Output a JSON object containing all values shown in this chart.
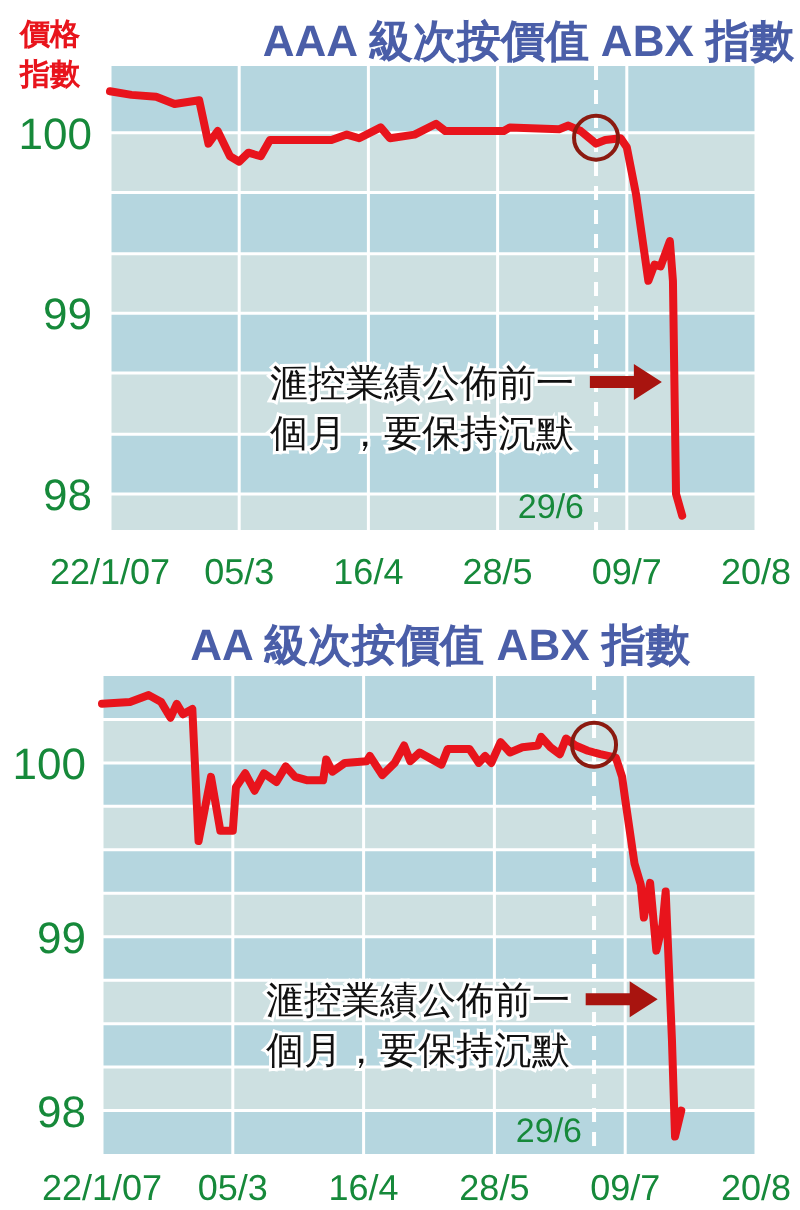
{
  "chart_data": [
    {
      "type": "line",
      "title": "AAA 級次按價值 ABX 指數",
      "ylabel": "價格指數",
      "x": [
        "2007-01-22",
        "2007-01-29",
        "2007-02-06",
        "2007-02-12",
        "2007-02-20",
        "2007-02-23",
        "2007-02-26",
        "2007-03-02",
        "2007-03-05",
        "2007-03-08",
        "2007-03-12",
        "2007-03-15",
        "2007-03-23",
        "2007-04-04",
        "2007-04-09",
        "2007-04-13",
        "2007-04-20",
        "2007-04-23",
        "2007-05-01",
        "2007-05-08",
        "2007-05-11",
        "2007-05-30",
        "2007-06-01",
        "2007-06-17",
        "2007-06-20",
        "2007-06-24",
        "2007-06-29",
        "2007-07-02",
        "2007-07-07",
        "2007-07-09",
        "2007-07-12",
        "2007-07-16",
        "2007-07-18",
        "2007-07-20",
        "2007-07-23",
        "2007-07-24",
        "2007-07-25",
        "2007-07-27"
      ],
      "series": [
        {
          "color": "#e8141c",
          "values": [
            100.23,
            100.21,
            100.2,
            100.16,
            100.18,
            99.94,
            100.01,
            99.87,
            99.84,
            99.89,
            99.87,
            99.96,
            99.96,
            99.96,
            99.99,
            99.97,
            100.03,
            99.97,
            99.99,
            100.05,
            100.01,
            100.01,
            100.03,
            100.02,
            100.04,
            100.01,
            99.94,
            99.96,
            99.97,
            99.92,
            99.66,
            99.18,
            99.27,
            99.26,
            99.4,
            99.18,
            98.0,
            97.88
          ]
        }
      ],
      "xlim": [
        "2007-01-22",
        "2007-08-20"
      ],
      "xticks": [
        {
          "value": "2007-01-22",
          "label": "22/1/07"
        },
        {
          "value": "2007-03-05",
          "label": "05/3"
        },
        {
          "value": "2007-04-16",
          "label": "16/4"
        },
        {
          "value": "2007-05-28",
          "label": "28/5"
        },
        {
          "value": "2007-07-09",
          "label": "09/7"
        },
        {
          "value": "2007-08-20",
          "label": "20/8"
        }
      ],
      "ylim": [
        97.8,
        100.37
      ],
      "yticks": [
        98,
        {
          "value": 98.33,
          "label": null
        },
        {
          "value": 98.67,
          "label": null
        },
        99,
        {
          "value": 99.33,
          "label": null
        },
        {
          "value": 99.67,
          "label": null
        },
        100
      ],
      "grid": true,
      "ref_lines": [
        {
          "axis": "x",
          "value": "2007-06-29",
          "label": "29/6",
          "color": "#ffffff",
          "line_style": "dashed"
        }
      ],
      "annotations": [
        {
          "text": "滙控業績公佈前一個月，要保持沉默",
          "x": "2007-07-23",
          "y": 98.62
        }
      ]
    },
    {
      "type": "line",
      "title": "AA 級次按價值 ABX 指數",
      "x": [
        "2007-01-22",
        "2007-01-31",
        "2007-02-06",
        "2007-02-10",
        "2007-02-13",
        "2007-02-15",
        "2007-02-17",
        "2007-02-20",
        "2007-02-22",
        "2007-02-26",
        "2007-03-01",
        "2007-03-05",
        "2007-03-06",
        "2007-03-09",
        "2007-03-12",
        "2007-03-15",
        "2007-03-19",
        "2007-03-22",
        "2007-03-25",
        "2007-03-29",
        "2007-04-03",
        "2007-04-04",
        "2007-04-06",
        "2007-04-10",
        "2007-04-17",
        "2007-04-18",
        "2007-04-22",
        "2007-04-26",
        "2007-04-29",
        "2007-05-01",
        "2007-05-04",
        "2007-05-08",
        "2007-05-11",
        "2007-05-13",
        "2007-05-20",
        "2007-05-23",
        "2007-05-25",
        "2007-05-27",
        "2007-05-30",
        "2007-06-02",
        "2007-06-06",
        "2007-06-11",
        "2007-06-12",
        "2007-06-15",
        "2007-06-18",
        "2007-06-20",
        "2007-06-23",
        "2007-06-27",
        "2007-07-01",
        "2007-07-06",
        "2007-07-08",
        "2007-07-09",
        "2007-07-12",
        "2007-07-14",
        "2007-07-15",
        "2007-07-17",
        "2007-07-19",
        "2007-07-21",
        "2007-07-22",
        "2007-07-24",
        "2007-07-25",
        "2007-07-27"
      ],
      "series": [
        {
          "color": "#e8141c",
          "values": [
            100.34,
            100.35,
            100.39,
            100.35,
            100.26,
            100.34,
            100.28,
            100.31,
            99.55,
            99.92,
            99.61,
            99.61,
            99.86,
            99.94,
            99.84,
            99.94,
            99.89,
            99.98,
            99.92,
            99.9,
            99.9,
            100.02,
            99.95,
            100.0,
            100.01,
            100.04,
            99.93,
            100.0,
            100.1,
            100.01,
            100.06,
            100.02,
            99.99,
            100.08,
            100.08,
            100.0,
            100.04,
            100.0,
            100.12,
            100.06,
            100.09,
            100.1,
            100.15,
            100.09,
            100.05,
            100.14,
            100.1,
            100.07,
            100.05,
            100.03,
            99.92,
            99.79,
            99.42,
            99.3,
            99.11,
            99.31,
            98.92,
            99.07,
            99.26,
            98.41,
            97.85,
            98.0
          ]
        }
      ],
      "xlim": [
        "2007-01-22",
        "2007-08-20"
      ],
      "xticks": [
        {
          "value": "2007-01-22",
          "label": "22/1/07"
        },
        {
          "value": "2007-03-05",
          "label": "05/3"
        },
        {
          "value": "2007-04-16",
          "label": "16/4"
        },
        {
          "value": "2007-05-28",
          "label": "28/5"
        },
        {
          "value": "2007-07-09",
          "label": "09/7"
        },
        {
          "value": "2007-08-20",
          "label": "20/8"
        }
      ],
      "ylim": [
        97.75,
        100.5
      ],
      "yticks": [
        98,
        {
          "value": 98.25,
          "label": null
        },
        {
          "value": 98.5,
          "label": null
        },
        {
          "value": 98.75,
          "label": null
        },
        99,
        {
          "value": 99.25,
          "label": null
        },
        {
          "value": 99.5,
          "label": null
        },
        {
          "value": 99.75,
          "label": null
        },
        100,
        {
          "value": 100.25,
          "label": null
        }
      ],
      "grid": true,
      "ref_lines": [
        {
          "axis": "x",
          "value": "2007-06-29",
          "label": "29/6",
          "color": "#ffffff",
          "line_style": "dashed"
        }
      ],
      "annotations": [
        {
          "text": "滙控業績公佈前一個月，要保持沉默",
          "x": "2007-07-22",
          "y": 98.64
        }
      ]
    }
  ]
}
